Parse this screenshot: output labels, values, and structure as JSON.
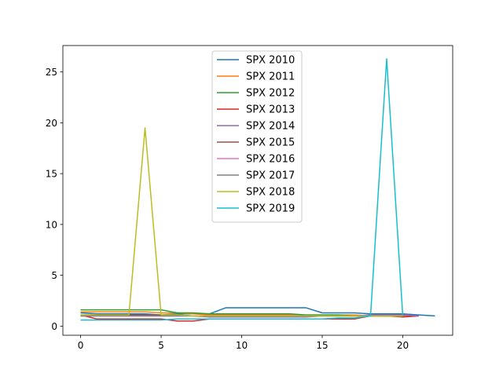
{
  "chart_data": {
    "type": "line",
    "title": "",
    "xlabel": "",
    "ylabel": "",
    "xlim": [
      -1.1,
      23.1
    ],
    "ylim": [
      -0.9,
      27.6
    ],
    "xticks": [
      0,
      5,
      10,
      15,
      20
    ],
    "yticks": [
      0,
      5,
      10,
      15,
      20,
      25
    ],
    "x_tick_labels": [
      "0",
      "5",
      "10",
      "15",
      "20"
    ],
    "y_tick_labels": [
      "0",
      "5",
      "10",
      "15",
      "20",
      "25"
    ],
    "grid": false,
    "legend_position": "upper center",
    "series": [
      {
        "name": "SPX 2010",
        "color": "#1f77b4",
        "x": [
          0,
          1,
          2,
          3,
          4,
          5,
          6,
          7,
          8,
          9,
          10,
          11,
          12,
          13,
          14,
          15,
          16,
          17,
          18,
          19,
          20,
          21,
          22
        ],
        "y": [
          1.3,
          1.2,
          1.2,
          1.2,
          1.2,
          1.1,
          1.2,
          1.2,
          1.2,
          1.8,
          1.8,
          1.8,
          1.8,
          1.8,
          1.8,
          1.3,
          1.3,
          1.3,
          1.2,
          1.2,
          1.2,
          1.1,
          1.0
        ]
      },
      {
        "name": "SPX 2011",
        "color": "#ff7f0e",
        "x": [
          0,
          1,
          2,
          3,
          4,
          5,
          6,
          7,
          8,
          9,
          10,
          11,
          12,
          13,
          14,
          15,
          16,
          17,
          18,
          19,
          20,
          21
        ],
        "y": [
          1.4,
          1.4,
          1.4,
          1.4,
          1.4,
          1.3,
          1.3,
          1.2,
          1.1,
          1.1,
          1.1,
          1.1,
          1.1,
          1.1,
          1.1,
          1.1,
          1.1,
          1.1,
          1.0,
          1.0,
          1.0,
          1.0
        ]
      },
      {
        "name": "SPX 2012",
        "color": "#2ca02c",
        "x": [
          0,
          1,
          2,
          3,
          4,
          5,
          6,
          7,
          8,
          9,
          10,
          11,
          12,
          13,
          14,
          15,
          16,
          17,
          18,
          19,
          20
        ],
        "y": [
          1.6,
          1.6,
          1.6,
          1.6,
          1.6,
          1.6,
          1.3,
          1.3,
          1.2,
          1.2,
          1.2,
          1.2,
          1.2,
          1.2,
          1.1,
          1.1,
          1.1,
          1.0,
          1.0,
          1.0,
          1.0
        ]
      },
      {
        "name": "SPX 2013",
        "color": "#d62728",
        "x": [
          0,
          1,
          2,
          3,
          4,
          5,
          6,
          7,
          8,
          9,
          10,
          11,
          12,
          13,
          14,
          15,
          16,
          17,
          18,
          19,
          20,
          21
        ],
        "y": [
          1.1,
          0.7,
          0.7,
          0.7,
          0.7,
          0.7,
          0.5,
          0.5,
          0.7,
          0.7,
          0.7,
          0.7,
          0.7,
          0.7,
          0.7,
          0.7,
          0.7,
          0.7,
          1.0,
          1.0,
          0.9,
          1.0
        ]
      },
      {
        "name": "SPX 2014",
        "color": "#9467bd",
        "x": [
          0,
          1,
          2,
          3,
          4,
          5,
          6,
          7,
          8,
          9,
          10,
          11,
          12,
          13,
          14,
          15,
          16,
          17,
          18,
          19,
          20,
          21
        ],
        "y": [
          1.0,
          1.0,
          1.0,
          1.0,
          1.0,
          1.0,
          1.0,
          1.0,
          0.9,
          0.9,
          0.9,
          0.9,
          0.9,
          0.9,
          0.9,
          1.0,
          1.0,
          1.0,
          1.1,
          1.1,
          1.1,
          1.0
        ]
      },
      {
        "name": "SPX 2015",
        "color": "#8c564b",
        "x": [
          0,
          1,
          2,
          3,
          4,
          5,
          6,
          7,
          8,
          9,
          10,
          11,
          12,
          13,
          14,
          15,
          16,
          17,
          18,
          19,
          20
        ],
        "y": [
          1.1,
          1.1,
          1.1,
          1.1,
          1.1,
          1.1,
          1.1,
          1.0,
          1.0,
          1.0,
          1.0,
          1.0,
          1.0,
          1.0,
          1.0,
          1.0,
          1.0,
          1.0,
          1.0,
          1.0,
          1.0
        ]
      },
      {
        "name": "SPX 2016",
        "color": "#e377c2",
        "x": [
          0,
          1,
          2,
          3,
          4,
          5,
          6,
          7,
          8,
          9,
          10,
          11,
          12,
          13,
          14,
          15,
          16,
          17,
          18,
          19,
          20
        ],
        "y": [
          1.0,
          1.0,
          1.0,
          1.0,
          1.0,
          1.0,
          1.0,
          1.0,
          1.0,
          1.0,
          1.0,
          1.0,
          1.0,
          1.0,
          1.0,
          1.0,
          1.0,
          1.0,
          1.0,
          1.0,
          1.0
        ]
      },
      {
        "name": "SPX 2017",
        "color": "#7f7f7f",
        "x": [
          0,
          1,
          2,
          3,
          4,
          5,
          6,
          7,
          8,
          9,
          10,
          11,
          12,
          13,
          14,
          15,
          16,
          17,
          18,
          19,
          20
        ],
        "y": [
          1.0,
          1.0,
          1.0,
          1.0,
          1.0,
          1.0,
          1.0,
          1.0,
          1.0,
          1.0,
          1.0,
          1.0,
          1.0,
          1.0,
          1.0,
          1.0,
          1.0,
          1.0,
          1.0,
          1.0,
          1.0
        ]
      },
      {
        "name": "SPX 2018",
        "color": "#bcbd22",
        "x": [
          0,
          1,
          2,
          3,
          4,
          5,
          6,
          7,
          8,
          9,
          10,
          11,
          12,
          13,
          14,
          15,
          16,
          17,
          18,
          19,
          20
        ],
        "y": [
          1.1,
          1.1,
          1.1,
          1.1,
          19.5,
          1.1,
          1.1,
          1.0,
          1.0,
          1.0,
          1.0,
          1.0,
          1.0,
          1.0,
          1.0,
          1.0,
          1.0,
          1.0,
          1.0,
          1.0,
          1.0
        ]
      },
      {
        "name": "SPX 2019",
        "color": "#17becf",
        "x": [
          0,
          1,
          2,
          3,
          4,
          5,
          6,
          7,
          8,
          9,
          10,
          11,
          12,
          13,
          14,
          15,
          16,
          17,
          18,
          19,
          20
        ],
        "y": [
          0.6,
          0.6,
          0.6,
          0.6,
          0.6,
          0.6,
          0.7,
          0.7,
          0.7,
          0.7,
          0.7,
          0.7,
          0.7,
          0.7,
          0.7,
          0.7,
          0.8,
          0.8,
          1.0,
          26.3,
          1.0
        ]
      }
    ]
  }
}
